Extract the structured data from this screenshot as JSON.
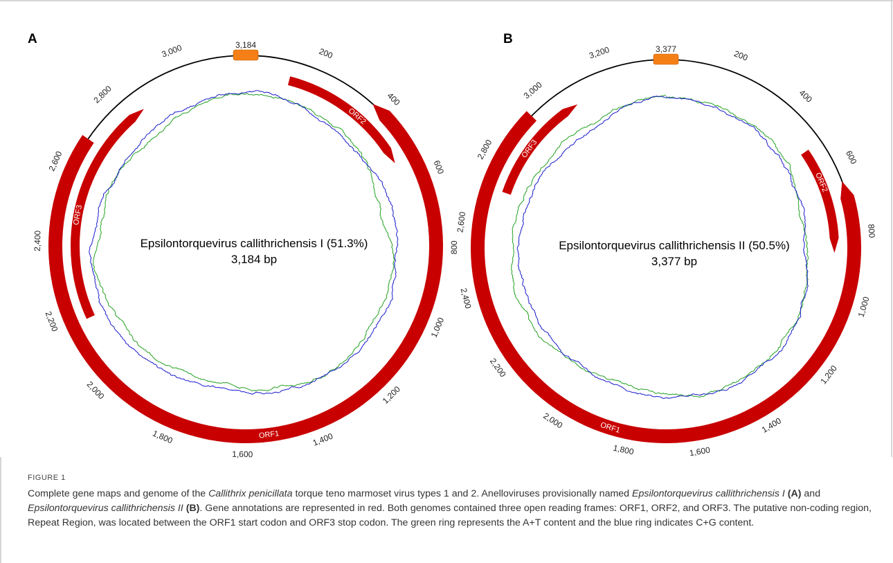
{
  "figure_label": "FIGURE 1",
  "colors": {
    "orf": "#c80000",
    "repeat_region": "#f57f17",
    "at_content": "#22a022",
    "cg_content": "#1a1acc",
    "backbone": "#000000",
    "frame": "#c8c8c8"
  },
  "panels": [
    {
      "letter": "A",
      "genome_name": "Epsilontorquevirus callithrichensis I (51.3%)",
      "genome_length_label": "3,184 bp",
      "genome_length": 3184,
      "repeat_label": "3,184",
      "ticks": [
        "200",
        "400",
        "600",
        "800",
        "1,000",
        "1,200",
        "1,400",
        "1,600",
        "1,800",
        "2,000",
        "2,200",
        "2,400",
        "2,600",
        "2,800",
        "3,000"
      ],
      "tick_positions": [
        200,
        400,
        600,
        800,
        1000,
        1200,
        1400,
        1600,
        1800,
        2000,
        2200,
        2400,
        2600,
        2800,
        3000
      ],
      "orfs": [
        {
          "name": "ORF1",
          "start": 370,
          "end": 2690,
          "track": "outer",
          "strand": "-",
          "label_pos": 1530
        },
        {
          "name": "ORF2",
          "start": 130,
          "end": 540,
          "track": "inner",
          "strand": "+",
          "label_pos": 360
        },
        {
          "name": "ORF3",
          "start": 2170,
          "end": 2860,
          "track": "inner",
          "strand": "+",
          "label_pos": 2480
        }
      ]
    },
    {
      "letter": "B",
      "genome_name": "Epsilontorquevirus callithrichensis II (50.5%)",
      "genome_length_label": "3,377 bp",
      "genome_length": 3377,
      "repeat_label": "3,377",
      "ticks": [
        "200",
        "400",
        "600",
        "800",
        "1,000",
        "1,200",
        "1,400",
        "1,600",
        "1,800",
        "2,000",
        "2,200",
        "2,400",
        "2,600",
        "2,800",
        "3,000",
        "3,200"
      ],
      "tick_positions": [
        200,
        400,
        600,
        800,
        1000,
        1200,
        1400,
        1600,
        1800,
        2000,
        2200,
        2400,
        2600,
        2800,
        3000,
        3200
      ],
      "orfs": [
        {
          "name": "ORF1",
          "start": 650,
          "end": 2950,
          "track": "outer",
          "strand": "-",
          "label_pos": 1850
        },
        {
          "name": "ORF2",
          "start": 520,
          "end": 860,
          "track": "inner",
          "strand": "+",
          "label_pos": 630
        },
        {
          "name": "ORF3",
          "start": 2710,
          "end": 3080,
          "track": "inner",
          "strand": "+",
          "label_pos": 2870
        }
      ]
    }
  ],
  "caption": {
    "p1": "Complete gene maps and genome of the ",
    "p2": "Callithrix penicillata",
    "p3": " torque teno marmoset virus types 1 and 2. Anelloviruses provisionally named ",
    "p4": "Epsilontorquevirus callithrichensis I",
    "p5": " ",
    "p6": "(A)",
    "p7": " and ",
    "p8": "Epsilontorquevirus callithrichensis II",
    "p9": " ",
    "p10": "(B)",
    "p11": ". Gene annotations are represented in red. Both genomes contained three open reading frames: ORF1, ORF2, and ORF3. The putative non-coding region, Repeat Region, was located between the ORF1 start codon and ORF3 stop codon. The green ring represents the A+T content and the blue ring indicates C+G content."
  }
}
